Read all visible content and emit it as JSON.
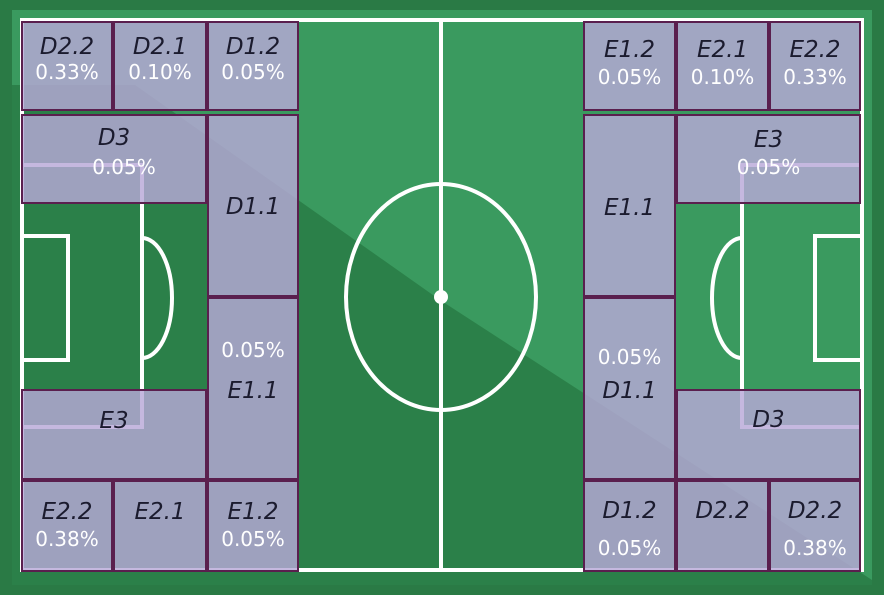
{
  "colors": {
    "border_dark": "#2a7a45",
    "grass_light": "#3a9a5f",
    "grass_dark": "#2b8049",
    "lines": "#ffffff",
    "zone_fill": "#b8a8d8",
    "zone_border": "#5a1f4e"
  },
  "zones": {
    "left": {
      "d22_top": {
        "label": "D2.2",
        "value": "0.33%"
      },
      "d21_top": {
        "label": "D2.1",
        "value": "0.10%"
      },
      "d12_top": {
        "label": "D1.2",
        "value": "0.05%"
      },
      "d3": {
        "label": "D3",
        "value": "0.05%"
      },
      "d11": {
        "label": "D1.1"
      },
      "e11": {
        "label": "E1.1",
        "value": "0.05%"
      },
      "e3": {
        "label": "E3"
      },
      "e22_bottom": {
        "label": "E2.2",
        "value": "0.38%"
      },
      "e21_bottom": {
        "label": "E2.1"
      },
      "e12_bottom": {
        "label": "E1.2",
        "value": "0.05%"
      }
    },
    "right": {
      "e12_top": {
        "label": "E1.2",
        "value": "0.05%"
      },
      "e21_top": {
        "label": "E2.1",
        "value": "0.10%"
      },
      "e22_top": {
        "label": "E2.2",
        "value": "0.33%"
      },
      "e3": {
        "label": "E3",
        "value": "0.05%"
      },
      "e11": {
        "label": "E1.1"
      },
      "d11": {
        "label": "D1.1",
        "value": "0.05%"
      },
      "d3": {
        "label": "D3"
      },
      "d12_bottom": {
        "label": "D1.2",
        "value": "0.05%"
      },
      "d22_mid": {
        "label": "D2.2"
      },
      "d22_bottom": {
        "label": "D2.2",
        "value": "0.38%"
      }
    }
  }
}
